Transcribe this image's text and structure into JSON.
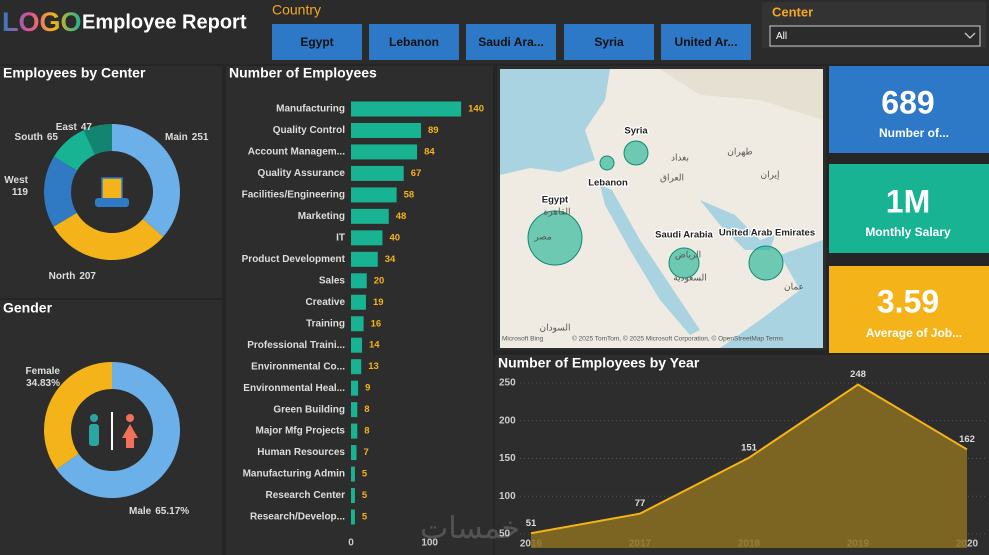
{
  "header": {
    "logo": "LOGO",
    "title": "Employee Report"
  },
  "country_filter": {
    "label": "Country",
    "options": [
      "Egypt",
      "Lebanon",
      "Saudi Ara...",
      "Syria",
      "United Ar..."
    ]
  },
  "center_filter": {
    "label": "Center",
    "selected": "All"
  },
  "kpis": [
    {
      "value": "689",
      "label": "Number of..."
    },
    {
      "value": "1M",
      "label": "Monthly Salary"
    },
    {
      "value": "3.59",
      "label": "Average of Job..."
    }
  ],
  "map": {
    "labels": [
      "Syria",
      "Lebanon",
      "Egypt",
      "Saudi Arabia",
      "United Arab Emirates"
    ],
    "tile_labels": [
      "مصر",
      "القاهرة",
      "السعودية",
      "الرياض",
      "العراق",
      "بغداد",
      "إيران",
      "طهران",
      "عمان",
      "السودان"
    ],
    "provider": "Microsoft Bing",
    "attribution": "© 2025 TomTom, © 2025 Microsoft Corporation, © OpenStreetMap Terms"
  },
  "watermark": "خمسات",
  "chart_data": [
    {
      "type": "donut",
      "title": "Employees by Center",
      "categories": [
        "Main",
        "North",
        "West",
        "South",
        "East"
      ],
      "values": [
        251,
        207,
        119,
        65,
        47
      ],
      "colors": [
        "#6cb0ea",
        "#f5b31a",
        "#2f7ac2",
        "#17b393",
        "#138470"
      ]
    },
    {
      "type": "donut",
      "title": "Gender",
      "categories": [
        "Male",
        "Female"
      ],
      "values": [
        65.17,
        34.83
      ],
      "value_labels": [
        "65.17%",
        "34.83%"
      ],
      "colors": [
        "#6cb0ea",
        "#f5b31a"
      ]
    },
    {
      "type": "bar",
      "title": "Number of Employees",
      "categories": [
        "Manufacturing",
        "Quality Control",
        "Account Managem...",
        "Quality Assurance",
        "Facilities/Engineering",
        "Marketing",
        "IT",
        "Product Development",
        "Sales",
        "Creative",
        "Training",
        "Professional Traini...",
        "Environmental Co...",
        "Environmental Heal...",
        "Green Building",
        "Major Mfg Projects",
        "Human Resources",
        "Manufacturing Admin",
        "Research Center",
        "Research/Develop..."
      ],
      "values": [
        140,
        89,
        84,
        67,
        58,
        48,
        40,
        34,
        20,
        19,
        16,
        14,
        13,
        9,
        8,
        8,
        7,
        5,
        5,
        5
      ],
      "color": "#17b393",
      "label_color": "#f5b31a",
      "xlim": [
        0,
        150
      ],
      "xticks": [
        0,
        100
      ]
    },
    {
      "type": "area",
      "title": "Number of Employees by Year",
      "x": [
        2016,
        2017,
        2018,
        2019,
        2020
      ],
      "values": [
        51,
        77,
        151,
        248,
        162
      ],
      "color": "#f5b31a",
      "fill": "#8b6e22",
      "xlim": [
        2016,
        2020
      ],
      "xticks": [
        2016,
        2017,
        2018,
        2019,
        2020
      ],
      "ylim": [
        50,
        250
      ],
      "yticks": [
        50,
        100,
        150,
        200,
        250
      ],
      "grid": true
    }
  ]
}
